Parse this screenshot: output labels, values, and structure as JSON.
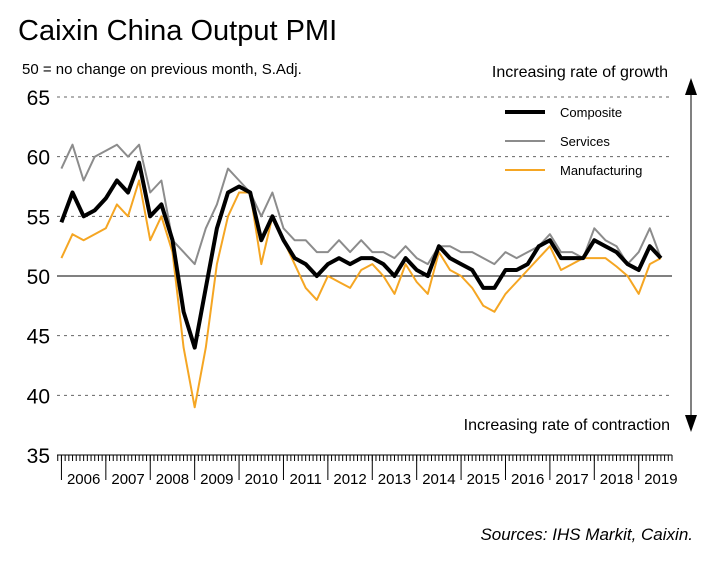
{
  "chart_data": {
    "type": "line",
    "title": "Caixin China Output PMI",
    "subtitle": "50 = no change on previous month, S.Adj.",
    "annotations": {
      "top": "Increasing rate of growth",
      "bottom": "Increasing rate of contraction"
    },
    "source": "Sources: IHS Markit, Caixin.",
    "x": [
      2006.0,
      2006.25,
      2006.5,
      2006.75,
      2007.0,
      2007.25,
      2007.5,
      2007.75,
      2008.0,
      2008.25,
      2008.5,
      2008.75,
      2009.0,
      2009.25,
      2009.5,
      2009.75,
      2010.0,
      2010.25,
      2010.5,
      2010.75,
      2011.0,
      2011.25,
      2011.5,
      2011.75,
      2012.0,
      2012.25,
      2012.5,
      2012.75,
      2013.0,
      2013.25,
      2013.5,
      2013.75,
      2014.0,
      2014.25,
      2014.5,
      2014.75,
      2015.0,
      2015.25,
      2015.5,
      2015.75,
      2016.0,
      2016.25,
      2016.5,
      2016.75,
      2017.0,
      2017.25,
      2017.5,
      2017.75,
      2018.0,
      2018.25,
      2018.5,
      2018.75,
      2019.0,
      2019.25,
      2019.5
    ],
    "series": [
      {
        "name": "Services",
        "color": "#8c8c8c",
        "width": 2,
        "values": [
          59,
          61,
          58,
          60,
          60.5,
          61,
          60,
          61,
          57,
          58,
          53,
          52,
          51,
          54,
          56,
          59,
          58,
          57,
          55,
          57,
          54,
          53,
          53,
          52,
          52,
          53,
          52,
          53,
          52,
          52,
          51.5,
          52.5,
          51.5,
          51,
          52.5,
          52.5,
          52,
          52,
          51.5,
          51,
          52,
          51.5,
          52,
          52.5,
          53.5,
          52,
          52,
          51.5,
          54,
          53,
          52.5,
          51,
          52,
          54,
          51.5
        ]
      },
      {
        "name": "Manufacturing",
        "color": "#f5a623",
        "width": 2,
        "values": [
          51.5,
          53.5,
          53,
          53.5,
          54,
          56,
          55,
          58,
          53,
          55,
          52,
          44,
          39,
          44,
          51,
          55,
          57,
          57,
          51,
          55,
          53,
          51,
          49,
          48,
          50,
          49.5,
          49,
          50.5,
          51,
          50,
          48.5,
          51,
          49.5,
          48.5,
          52,
          50.5,
          50,
          49,
          47.5,
          47,
          48.5,
          49.5,
          50.5,
          51.5,
          52.5,
          50.5,
          51,
          51.5,
          51.5,
          51.5,
          50.8,
          50,
          48.5,
          51,
          51.5
        ]
      },
      {
        "name": "Composite",
        "color": "#000000",
        "width": 4,
        "values": [
          54.5,
          57,
          55,
          55.5,
          56.5,
          58,
          57,
          59.5,
          55,
          56,
          53,
          47,
          44,
          49,
          54,
          57,
          57.5,
          57,
          53,
          55,
          53,
          51.5,
          51,
          50,
          51,
          51.5,
          51,
          51.5,
          51.5,
          51,
          50,
          51.5,
          50.5,
          50,
          52.5,
          51.5,
          51,
          50.5,
          49,
          49,
          50.5,
          50.5,
          51,
          52.5,
          53,
          51.5,
          51.5,
          51.5,
          53,
          52.5,
          52,
          51,
          50.5,
          52.5,
          51.5
        ]
      }
    ],
    "legend_order": [
      2,
      0,
      1
    ],
    "xlim": [
      2005.9,
      2019.75
    ],
    "xticks": [
      2006,
      2007,
      2008,
      2009,
      2010,
      2011,
      2012,
      2013,
      2014,
      2015,
      2016,
      2017,
      2018,
      2019
    ],
    "ylim": [
      35,
      65
    ],
    "yticks": [
      35,
      40,
      45,
      50,
      55,
      60,
      65
    ],
    "reference_line": 50,
    "grid": true
  }
}
